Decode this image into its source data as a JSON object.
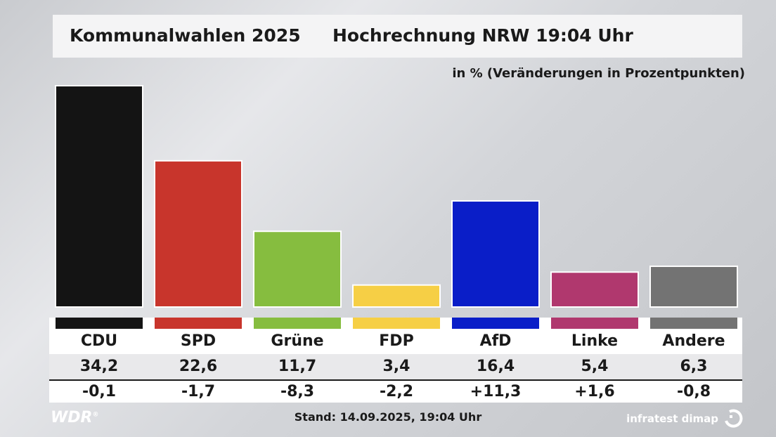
{
  "header": {
    "title_left": "Kommunalwahlen 2025",
    "title_right": "Hochrechnung NRW 19:04 Uhr",
    "subtitle": "in % (Veränderungen in Prozentpunkten)"
  },
  "footer": {
    "stand": "Stand: 14.09.2025, 19:04 Uhr",
    "broadcaster": "WDR",
    "registered": "®",
    "pollster": "infratest dimap"
  },
  "colors": {
    "CDU": "#141414",
    "SPD": "#c8352c",
    "Grüne": "#86bd3f",
    "FDP": "#f6cf45",
    "AfD": "#0a1ec8",
    "Linke": "#b0386e",
    "Andere": "#737373"
  },
  "chart_data": {
    "type": "bar",
    "categories": [
      "CDU",
      "SPD",
      "Grüne",
      "FDP",
      "AfD",
      "Linke",
      "Andere"
    ],
    "values": [
      34.2,
      22.6,
      11.7,
      3.4,
      16.4,
      5.4,
      6.3
    ],
    "values_display": [
      "34,2",
      "22,6",
      "11,7",
      "3,4",
      "16,4",
      "5,4",
      "6,3"
    ],
    "changes": [
      -0.1,
      -1.7,
      -8.3,
      -2.2,
      11.3,
      1.6,
      -0.8
    ],
    "changes_display": [
      "-0,1",
      "-1,7",
      "-8,3",
      "-2,2",
      "+11,3",
      "+1,6",
      "-0,8"
    ],
    "title": "Hochrechnung NRW 19:04 Uhr",
    "ylabel": "in % (Veränderungen in Prozentpunkten)",
    "ylim": [
      0,
      34.2
    ],
    "grid": false,
    "legend": "none"
  }
}
